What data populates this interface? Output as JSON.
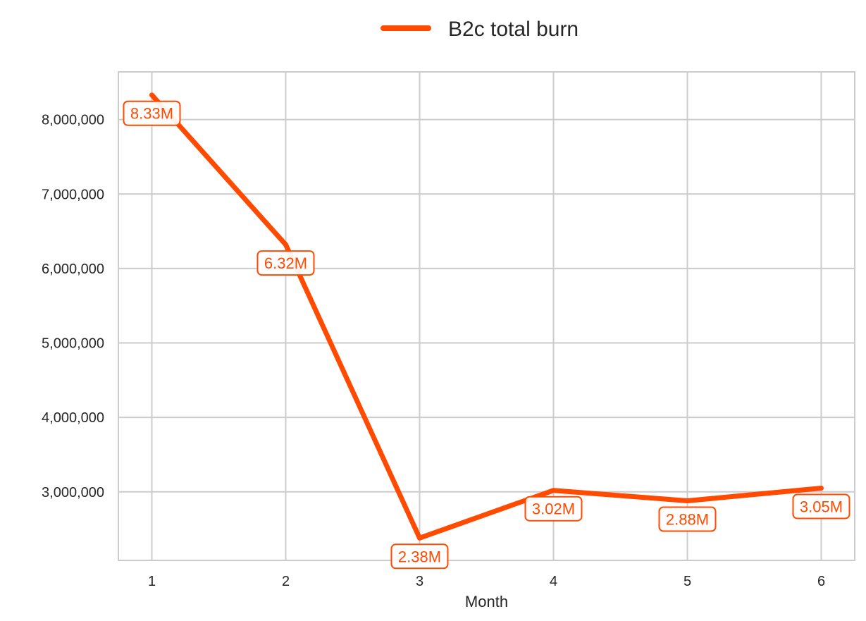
{
  "chart_data": {
    "type": "line",
    "title": "",
    "xlabel": "Month",
    "ylabel": "",
    "x": [
      1,
      2,
      3,
      4,
      5,
      6
    ],
    "xticks": [
      "1",
      "2",
      "3",
      "4",
      "5",
      "6"
    ],
    "yticks": [
      3000000,
      4000000,
      5000000,
      6000000,
      7000000,
      8000000
    ],
    "ytick_labels": [
      "3,000,000",
      "4,000,000",
      "5,000,000",
      "6,000,000",
      "7,000,000",
      "8,000,000"
    ],
    "xlim": [
      0.75,
      6.25
    ],
    "ylim": [
      2080000,
      8640000
    ],
    "grid": true,
    "legend_position": "top-center",
    "series": [
      {
        "name": "B2c total burn",
        "color": "#ff4a00",
        "values": [
          8330000,
          6320000,
          2380000,
          3020000,
          2880000,
          3050000
        ],
        "labels": [
          "8.33M",
          "6.32M",
          "2.38M",
          "3.02M",
          "2.88M",
          "3.05M"
        ]
      }
    ]
  }
}
